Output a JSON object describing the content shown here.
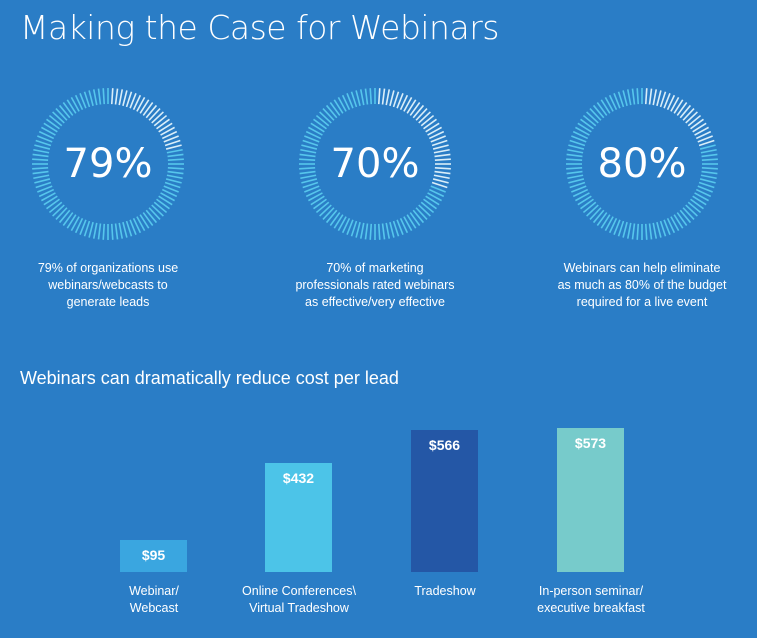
{
  "title": "Making the Case for Webinars",
  "stats": [
    {
      "percent": 79,
      "label": "79%",
      "caption_lines": [
        "79% of organizations use",
        "webinars/webcasts to",
        "generate leads"
      ]
    },
    {
      "percent": 70,
      "label": "70%",
      "caption_lines": [
        "70% of marketing",
        "professionals rated webinars",
        "as effective/very effective"
      ]
    },
    {
      "percent": 80,
      "label": "80%",
      "caption_lines": [
        "Webinars can help eliminate",
        "as much as 80% of the budget",
        "required for a live event"
      ]
    }
  ],
  "colors": {
    "background": "#2a7dc6",
    "ring_filled": "#56c6ec",
    "ring_empty": "#d9eef9",
    "bar_webinar": "#3aa6e0",
    "bar_online": "#4cc4e8",
    "bar_tradeshow": "#2457a6",
    "bar_seminar": "#77cbcb"
  },
  "chart_data": {
    "type": "bar",
    "title": "Webinars can dramatically reduce cost per lead",
    "categories": [
      [
        "Webinar/",
        "Webcast"
      ],
      [
        "Online Conferences\\",
        "Virtual Tradeshow"
      ],
      [
        "Tradeshow"
      ],
      [
        "In-person seminar/",
        "executive breakfast"
      ]
    ],
    "values": [
      95,
      432,
      566,
      573
    ],
    "value_labels": [
      "$95",
      "$432",
      "$566",
      "$573"
    ],
    "ylim": [
      0,
      600
    ],
    "grid": false,
    "legend": "none"
  }
}
